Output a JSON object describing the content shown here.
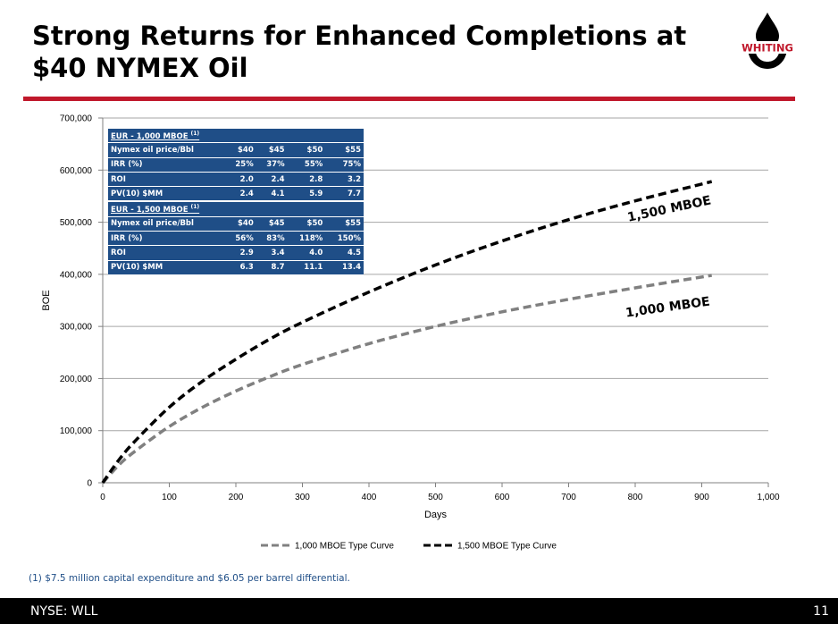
{
  "slide": {
    "title": "Strong Returns for Enhanced Completions at $40 NYMEX Oil",
    "logo_text": "WHITING",
    "footnote": "(1) $7.5 million capital expenditure and $6.05 per barrel differential.",
    "footer_left": "NYSE: WLL",
    "page_number": "11",
    "colors": {
      "accent": "#c0182b",
      "table_bg": "#1f4e87",
      "footer_bg": "#000000"
    }
  },
  "tables": [
    {
      "header_label": "EUR - 1,000 MBOE",
      "header_sup": "(1)",
      "rows": [
        [
          "Nymex oil price/Bbl",
          "$40",
          "$45",
          "$50",
          "$55"
        ],
        [
          "IRR (%)",
          "25%",
          "37%",
          "55%",
          "75%"
        ],
        [
          "ROI",
          "2.0",
          "2.4",
          "2.8",
          "3.2"
        ],
        [
          "PV(10) $MM",
          "2.4",
          "4.1",
          "5.9",
          "7.7"
        ]
      ]
    },
    {
      "header_label": "EUR - 1,500 MBOE",
      "header_sup": "(1)",
      "rows": [
        [
          "Nymex oil price/Bbl",
          "$40",
          "$45",
          "$50",
          "$55"
        ],
        [
          "IRR (%)",
          "56%",
          "83%",
          "118%",
          "150%"
        ],
        [
          "ROI",
          "2.9",
          "3.4",
          "4.0",
          "4.5"
        ],
        [
          "PV(10) $MM",
          "6.3",
          "8.7",
          "11.1",
          "13.4"
        ]
      ]
    }
  ],
  "chart_data": {
    "type": "line",
    "xlabel": "Days",
    "ylabel": "BOE",
    "xlim": [
      0,
      1000
    ],
    "ylim": [
      0,
      700000
    ],
    "xticks": [
      0,
      100,
      200,
      300,
      400,
      500,
      600,
      700,
      800,
      900,
      1000
    ],
    "xtick_labels": [
      "0",
      "100",
      "200",
      "300",
      "400",
      "500",
      "600",
      "700",
      "800",
      "900",
      "1,000"
    ],
    "yticks": [
      0,
      100000,
      200000,
      300000,
      400000,
      500000,
      600000,
      700000
    ],
    "ytick_labels": [
      "0",
      "100,000",
      "200,000",
      "300,000",
      "400,000",
      "500,000",
      "600,000",
      "700,000"
    ],
    "grid": "horizontal",
    "legend": "bottom",
    "series": [
      {
        "name": "1,000 MBOE Type Curve",
        "label": "1,000 MBOE",
        "color": "#808080",
        "style": "dashed",
        "x": [
          0,
          25,
          50,
          100,
          150,
          200,
          250,
          300,
          400,
          500,
          600,
          700,
          800,
          915
        ],
        "y": [
          0,
          35000,
          62000,
          108000,
          145000,
          176000,
          203000,
          227000,
          267000,
          300000,
          328000,
          352000,
          374000,
          398000
        ]
      },
      {
        "name": "1,500 MBOE Type Curve",
        "label": "1,500 MBOE",
        "color": "#000000",
        "style": "dashed",
        "x": [
          0,
          25,
          50,
          100,
          150,
          200,
          250,
          300,
          400,
          500,
          600,
          700,
          800,
          915
        ],
        "y": [
          0,
          45000,
          82000,
          145000,
          195000,
          237000,
          275000,
          308000,
          366000,
          418000,
          464000,
          505000,
          541000,
          578000
        ]
      }
    ]
  }
}
